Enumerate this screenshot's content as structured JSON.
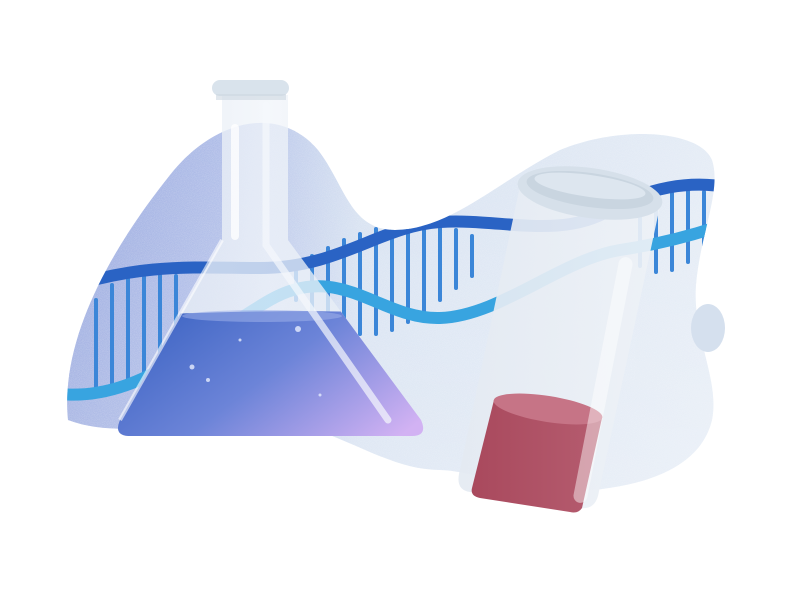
{
  "illustration": {
    "subject": "science",
    "elements": [
      "blob-background",
      "dna-helix",
      "erlenmeyer-flask",
      "test-tube",
      "small-dot"
    ],
    "colors": {
      "page_background": "#ffffff",
      "blob_light": "#e3ebf5",
      "blob_left": "#7e93d2",
      "blob_left_deep": "#8a9ee0",
      "dna_primary": "#2e6fc9",
      "dna_accent": "#38a4e0",
      "dna_rung": "#3b8fdc",
      "flask_glass": "#e8eef5",
      "flask_rim": "#d6e0ea",
      "flask_liquid_start": "#3a64c2",
      "flask_liquid_end": "#c9aef0",
      "tube_glass": "#e9eef4",
      "tube_rim": "#cfd9e3",
      "tube_liquid": "#b5566a",
      "tube_liquid_top": "#d18595",
      "dot": "#d5e0ee"
    }
  }
}
